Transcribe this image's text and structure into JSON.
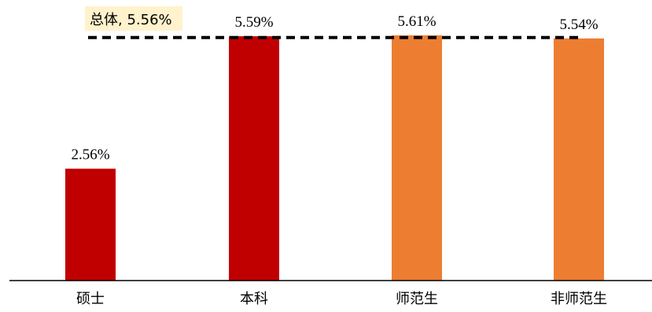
{
  "chart_data": {
    "type": "bar",
    "categories": [
      "硕士",
      "本科",
      "师范生",
      "非师范生"
    ],
    "values": [
      2.56,
      5.59,
      5.61,
      5.54
    ],
    "value_labels": [
      "2.56%",
      "5.59%",
      "5.61%",
      "5.54%"
    ],
    "colors": [
      "#C00000",
      "#C00000",
      "#ED7D31",
      "#ED7D31"
    ],
    "reference_line": {
      "value": 5.56,
      "label": "总体, 5.56%",
      "style": "dashed",
      "color": "#000000"
    },
    "title": "",
    "xlabel": "",
    "ylabel": "",
    "ylim": [
      0,
      5.7
    ],
    "grid": false,
    "legend": "none"
  }
}
